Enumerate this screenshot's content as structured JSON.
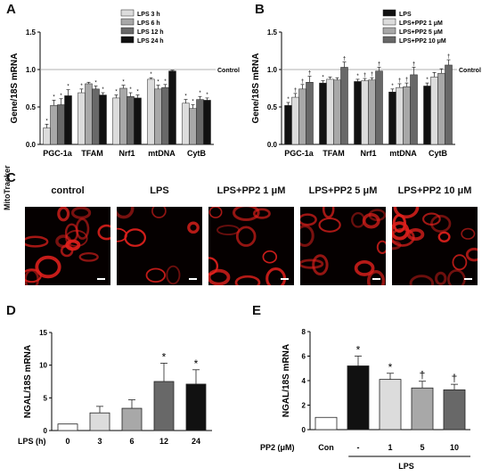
{
  "panel_letters": {
    "a": "A",
    "b": "B",
    "c": "C",
    "d": "D",
    "e": "E"
  },
  "control_line_label": "Control",
  "significance_symbols": {
    "vs_control": "*",
    "vs_lps": "†"
  },
  "microscopy": {
    "side_label": "MitoTracker",
    "titles": [
      "control",
      "LPS",
      "LPS+PP2 1 μM",
      "LPS+PP2 5 μM",
      "LPS+PP2 10 μM"
    ],
    "colors": {
      "background": "#050000",
      "stain": "#e0201c"
    }
  },
  "chart_data": [
    {
      "id": "A",
      "type": "bar",
      "ylabel": "Gene/18S mRNA",
      "ylim": [
        0,
        1.5
      ],
      "yticks": [
        "0.0",
        "0.5",
        "1.0",
        "1.5"
      ],
      "reference_line": 1.0,
      "categories": [
        "PGC-1a",
        "TFAM",
        "Nrf1",
        "mtDNA",
        "CytB"
      ],
      "legend_position": "top-right",
      "series": [
        {
          "name": "LPS 3 h",
          "color": "#dcdcdc",
          "values": [
            0.22,
            0.69,
            0.62,
            0.87,
            0.55
          ],
          "errors": [
            0.05,
            0.05,
            0.04,
            0.02,
            0.05
          ],
          "sig": [
            "*",
            "*",
            "*",
            "*",
            "*"
          ]
        },
        {
          "name": "LPS 6 h",
          "color": "#a8a8a8",
          "values": [
            0.52,
            0.81,
            0.75,
            0.74,
            0.48
          ],
          "errors": [
            0.07,
            0.02,
            0.04,
            0.05,
            0.05
          ],
          "sig": [
            "*",
            "",
            "*",
            "*",
            "*"
          ]
        },
        {
          "name": "LPS 12 h",
          "color": "#686868",
          "values": [
            0.53,
            0.74,
            0.64,
            0.76,
            0.6
          ],
          "errors": [
            0.08,
            0.04,
            0.05,
            0.04,
            0.04
          ],
          "sig": [
            "*",
            "*",
            "*",
            "*",
            "*"
          ]
        },
        {
          "name": "LPS 24 h",
          "color": "#111111",
          "values": [
            0.65,
            0.66,
            0.62,
            0.98,
            0.59
          ],
          "errors": [
            0.08,
            0.03,
            0.04,
            0.01,
            0.03
          ],
          "sig": [
            "*",
            "*",
            "*",
            "",
            "*"
          ]
        }
      ]
    },
    {
      "id": "B",
      "type": "bar",
      "ylabel": "Gene/18S mRNA",
      "ylim": [
        0,
        1.5
      ],
      "yticks": [
        "0.0",
        "0.5",
        "1.0",
        "1.5"
      ],
      "reference_line": 1.0,
      "categories": [
        "PGC-1a",
        "TFAM",
        "Nrf1",
        "mtDNA",
        "CytB"
      ],
      "legend_position": "top-right",
      "series": [
        {
          "name": "LPS",
          "color": "#111111",
          "values": [
            0.52,
            0.82,
            0.84,
            0.7,
            0.78
          ],
          "errors": [
            0.04,
            0.03,
            0.03,
            0.04,
            0.04
          ],
          "sig": [
            "*",
            "*",
            "*",
            "*",
            "*"
          ]
        },
        {
          "name": "LPS+PP2 1 μM",
          "color": "#dcdcdc",
          "values": [
            0.63,
            0.87,
            0.85,
            0.76,
            0.9
          ],
          "errors": [
            0.05,
            0.03,
            0.03,
            0.05,
            0.06
          ],
          "sig": [
            "†",
            "",
            "†",
            "†",
            ""
          ]
        },
        {
          "name": "LPS+PP2 5 μM",
          "color": "#a8a8a8",
          "values": [
            0.74,
            0.86,
            0.86,
            0.77,
            0.95
          ],
          "errors": [
            0.06,
            0.03,
            0.03,
            0.05,
            0.06
          ],
          "sig": [
            "†",
            "",
            "†",
            "†",
            ""
          ]
        },
        {
          "name": "LPS+PP2 10 μM",
          "color": "#686868",
          "values": [
            0.83,
            1.03,
            0.98,
            0.93,
            1.06
          ],
          "errors": [
            0.08,
            0.07,
            0.05,
            0.1,
            0.07
          ],
          "sig": [
            "†",
            "†",
            "†",
            "†",
            "†"
          ]
        }
      ]
    },
    {
      "id": "D",
      "type": "bar",
      "ylabel": "NGAL/18S mRNA",
      "xlabel": "LPS (h)",
      "ylim": [
        0,
        15
      ],
      "yticks": [
        "0",
        "5",
        "10",
        "15"
      ],
      "categories": [
        "0",
        "3",
        "6",
        "12",
        "24"
      ],
      "values": [
        1.0,
        2.7,
        3.4,
        7.5,
        7.1
      ],
      "errors": [
        0.0,
        1.0,
        1.3,
        2.8,
        2.2
      ],
      "colors": [
        "#ffffff",
        "#dcdcdc",
        "#a8a8a8",
        "#686868",
        "#111111"
      ],
      "sig": [
        "",
        "",
        "",
        "*",
        "*"
      ]
    },
    {
      "id": "E",
      "type": "bar",
      "ylabel": "NGAL/18S mRNA",
      "xlabel": "PP2 (μM)",
      "group_label": "LPS",
      "ylim": [
        0,
        8
      ],
      "yticks": [
        "0",
        "2",
        "4",
        "6",
        "8"
      ],
      "categories": [
        "Con",
        "-",
        "1",
        "5",
        "10"
      ],
      "values": [
        1.0,
        5.2,
        4.1,
        3.4,
        3.25
      ],
      "errors": [
        0.0,
        0.8,
        0.5,
        0.55,
        0.45
      ],
      "colors": [
        "#ffffff",
        "#111111",
        "#dcdcdc",
        "#a8a8a8",
        "#686868"
      ],
      "sig": [
        "",
        "*",
        "*",
        "†",
        "†"
      ]
    }
  ]
}
